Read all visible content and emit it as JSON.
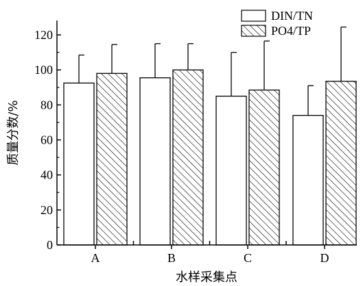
{
  "chart_data": {
    "type": "bar",
    "title": "",
    "xlabel": "水样采集点",
    "ylabel": "质量分数/%",
    "categories": [
      "A",
      "B",
      "C",
      "D"
    ],
    "ylim": [
      0,
      130
    ],
    "yticks": [
      0,
      20,
      40,
      60,
      80,
      100,
      120
    ],
    "grid": false,
    "legend_position": "top-right",
    "series": [
      {
        "name": "DIN/TN",
        "pattern": "solid-white",
        "values": [
          92.5,
          95.5,
          85,
          74
        ],
        "error": [
          16,
          19.5,
          25,
          17
        ]
      },
      {
        "name": "PO4/TP",
        "pattern": "diagonal-hatch",
        "values": [
          98,
          100,
          88.5,
          93.5
        ],
        "error": [
          16.5,
          15,
          28,
          31
        ]
      }
    ]
  }
}
